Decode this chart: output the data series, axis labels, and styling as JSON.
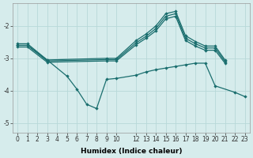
{
  "xlabel": "Humidex (Indice chaleur)",
  "background_color": "#d6ecec",
  "grid_color": "#b8d8d8",
  "line_color": "#1a6e6e",
  "ylim": [
    -5.3,
    -1.3
  ],
  "xlim": [
    -0.5,
    23.5
  ],
  "xticks": [
    0,
    1,
    2,
    3,
    4,
    5,
    6,
    7,
    8,
    9,
    10,
    12,
    13,
    14,
    15,
    16,
    17,
    18,
    19,
    20,
    21,
    22,
    23
  ],
  "yticks": [
    -5,
    -4,
    -3,
    -2
  ],
  "curves": [
    {
      "x": [
        0,
        1,
        3,
        9,
        10,
        12,
        13,
        14,
        15,
        16,
        17,
        18,
        19,
        20,
        21
      ],
      "y": [
        -2.55,
        -2.55,
        -3.05,
        -3.0,
        -3.0,
        -2.45,
        -2.25,
        -2.0,
        -1.62,
        -1.55,
        -2.3,
        -2.48,
        -2.62,
        -2.62,
        -3.05
      ]
    },
    {
      "x": [
        0,
        1,
        3,
        9,
        10,
        12,
        13,
        14,
        15,
        16,
        17,
        18,
        19,
        20,
        21
      ],
      "y": [
        -2.6,
        -2.6,
        -3.08,
        -3.04,
        -3.04,
        -2.52,
        -2.32,
        -2.08,
        -1.7,
        -1.62,
        -2.38,
        -2.55,
        -2.68,
        -2.68,
        -3.1
      ]
    },
    {
      "x": [
        0,
        1,
        3,
        9,
        10,
        12,
        13,
        14,
        15,
        16,
        17,
        18,
        19,
        20,
        21
      ],
      "y": [
        -2.65,
        -2.65,
        -3.12,
        -3.08,
        -3.08,
        -2.58,
        -2.38,
        -2.15,
        -1.78,
        -1.7,
        -2.45,
        -2.62,
        -2.75,
        -2.75,
        -3.15
      ]
    },
    {
      "x": [
        0,
        1,
        3,
        5,
        6,
        7,
        8,
        9,
        10,
        12,
        13,
        14,
        15,
        16,
        17,
        18,
        19,
        20,
        22,
        23
      ],
      "y": [
        -2.6,
        -2.6,
        -3.05,
        -3.55,
        -3.95,
        -4.42,
        -4.55,
        -3.65,
        -3.62,
        -3.52,
        -3.42,
        -3.35,
        -3.3,
        -3.25,
        -3.2,
        -3.15,
        -3.15,
        -3.85,
        -4.05,
        -4.18
      ]
    }
  ]
}
